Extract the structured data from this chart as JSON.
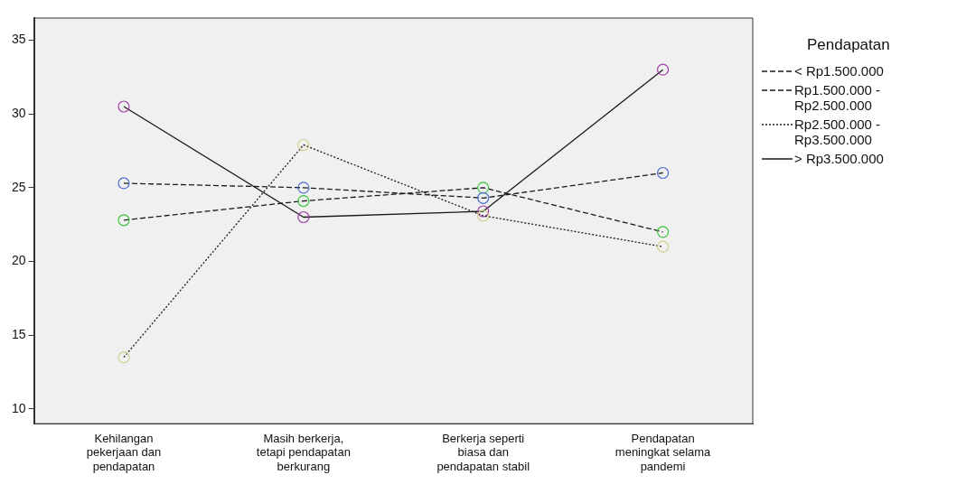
{
  "chart_data": {
    "type": "line",
    "legend_title": "Pendapatan",
    "legend": "right",
    "marker": "circle",
    "grid": false,
    "categories": [
      "Kehilangan pekerjaan dan pendapatan",
      "Masih berkerja, tetapi pendapatan berkurang",
      "Berkerja seperti biasa dan pendapatan stabil",
      "Pendapatan meningkat selama pandemi"
    ],
    "ylim": [
      9,
      36.5
    ],
    "yticks": [
      10,
      15,
      20,
      25,
      30,
      35
    ],
    "series": [
      {
        "name": "< Rp1.500.000",
        "color": "#4f6fd0",
        "line_style": "dashed",
        "values": [
          25.3,
          25.0,
          24.3,
          26.0
        ]
      },
      {
        "name": "Rp1.500.000 - Rp2.500.000",
        "color": "#3cc43c",
        "line_style": "dashed",
        "values": [
          22.8,
          24.1,
          25.0,
          22.0
        ]
      },
      {
        "name": "Rp2.500.000 - Rp3.500.000",
        "color": "#d2d08c",
        "line_style": "dotted",
        "values": [
          13.5,
          27.9,
          23.1,
          21.0
        ]
      },
      {
        "name": "> Rp3.500.000",
        "color": "#a040a8",
        "line_style": "solid",
        "values": [
          30.5,
          23.0,
          23.4,
          33.0
        ]
      }
    ]
  }
}
